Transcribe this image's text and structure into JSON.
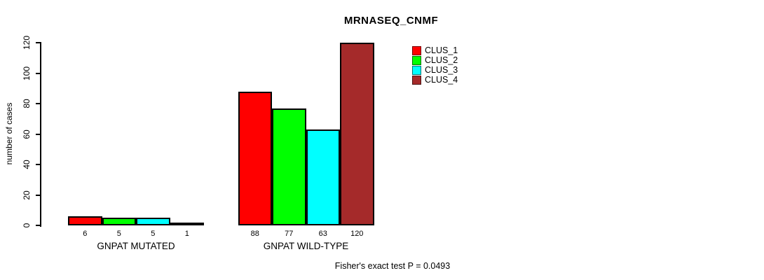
{
  "chart_data": {
    "type": "bar",
    "title": "MRNASEQ_CNMF",
    "xlabel": "",
    "ylabel": "number of cases",
    "ylim": [
      0,
      120
    ],
    "yticks": [
      0,
      20,
      40,
      60,
      80,
      100,
      120
    ],
    "grid": false,
    "legend_position": "top-right-inside",
    "bar_value_labels_shown": true,
    "categories": [
      "GNPAT MUTATED",
      "GNPAT WILD-TYPE"
    ],
    "series": [
      {
        "name": "CLUS_1",
        "color": "#FF0000",
        "values": [
          6,
          88
        ]
      },
      {
        "name": "CLUS_2",
        "color": "#00FF00",
        "values": [
          5,
          77
        ]
      },
      {
        "name": "CLUS_3",
        "color": "#00FFFF",
        "values": [
          5,
          63
        ]
      },
      {
        "name": "CLUS_4",
        "color": "#A52A2A",
        "values": [
          1,
          120
        ]
      }
    ]
  },
  "colors": {
    "axis": "#000000",
    "background": "#FFFFFF"
  },
  "footer": {
    "text": "Fisher's exact test P = 0.0493"
  }
}
